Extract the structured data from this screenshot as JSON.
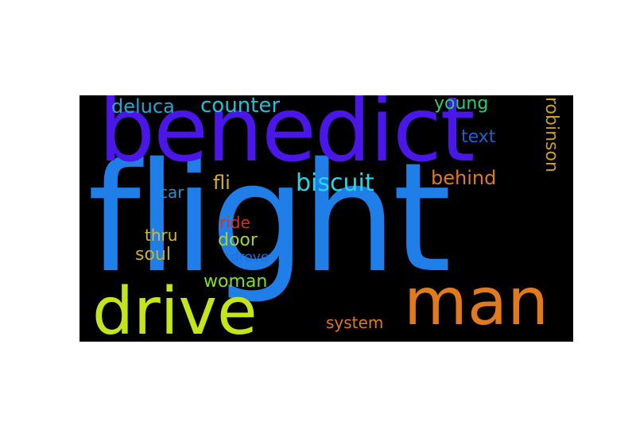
{
  "words": [
    {
      "text": "flight",
      "color": "#1f7ee8"
    },
    {
      "text": "benedict",
      "color": "#4a17e8"
    },
    {
      "text": "man",
      "color": "#e07a1c"
    },
    {
      "text": "drive",
      "color": "#c6e41a"
    },
    {
      "text": "biscuit",
      "color": "#27d6e8"
    },
    {
      "text": "counter",
      "color": "#22c1d8"
    },
    {
      "text": "deluca",
      "color": "#2aa3d6"
    },
    {
      "text": "young",
      "color": "#26d07a"
    },
    {
      "text": "text",
      "color": "#1d5fd6"
    },
    {
      "text": "robinson",
      "color": "#c8a020"
    },
    {
      "text": "behind",
      "color": "#e07a1c"
    },
    {
      "text": "fli",
      "color": "#d6b030"
    },
    {
      "text": "car",
      "color": "#2a8ec8"
    },
    {
      "text": "ride",
      "color": "#d03618"
    },
    {
      "text": "thru",
      "color": "#d6b838"
    },
    {
      "text": "door",
      "color": "#a6d42a"
    },
    {
      "text": "soul",
      "color": "#c8b02a"
    },
    {
      "text": "drove",
      "color": "#1f6ee0"
    },
    {
      "text": "woman",
      "color": "#7ee02a"
    },
    {
      "text": "system",
      "color": "#e07a1c"
    }
  ]
}
